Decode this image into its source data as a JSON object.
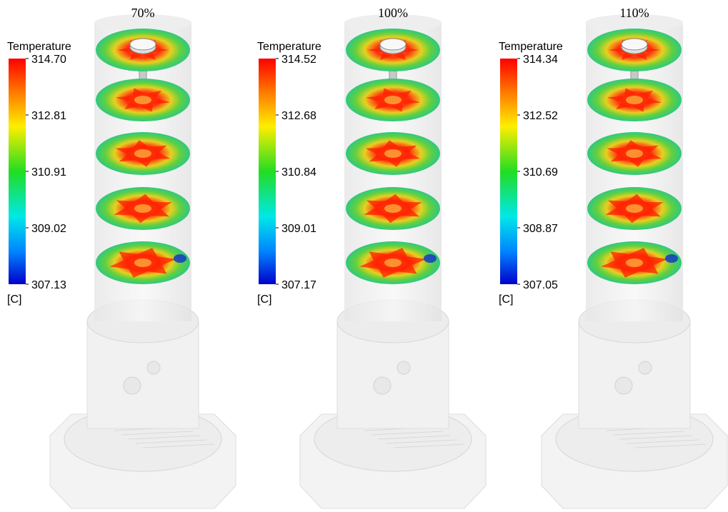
{
  "panels": [
    {
      "title": "70%",
      "legend": {
        "title": "Temperature",
        "ticks": [
          "314.70",
          "312.81",
          "310.91",
          "309.02",
          "307.13"
        ],
        "unit": "[C]"
      }
    },
    {
      "title": "100%",
      "legend": {
        "title": "Temperature",
        "ticks": [
          "314.52",
          "312.68",
          "310.84",
          "309.01",
          "307.17"
        ],
        "unit": "[C]"
      }
    },
    {
      "title": "110%",
      "legend": {
        "title": "Temperature",
        "ticks": [
          "314.34",
          "312.52",
          "310.69",
          "308.87",
          "307.05"
        ],
        "unit": "[C]"
      }
    }
  ]
}
